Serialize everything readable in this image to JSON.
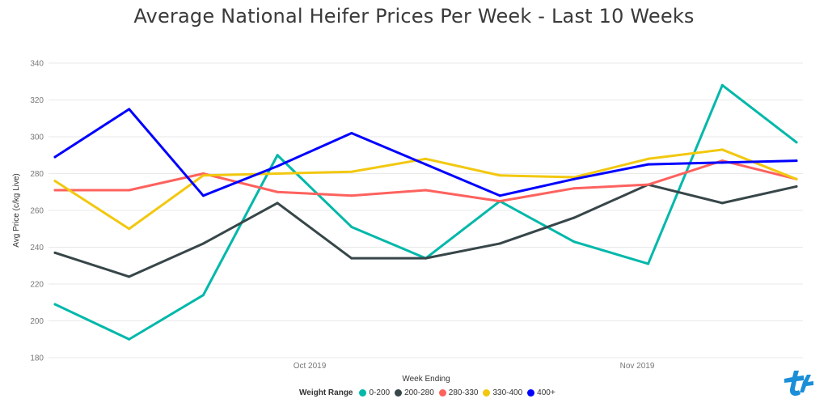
{
  "chart_data": {
    "type": "line",
    "title": "Average National Heifer Prices Per Week - Last 10 Weeks",
    "xlabel": "Week Ending",
    "ylabel": "Avg Price (c/kg Live)",
    "ylim": [
      180,
      340
    ],
    "y_ticks": [
      180,
      200,
      220,
      240,
      260,
      280,
      300,
      320,
      340
    ],
    "x_tick_labels": [
      "Oct 2019",
      "Nov 2019"
    ],
    "grid": "horizontal",
    "legend_title": "Weight Range",
    "legend_position": "bottom-center",
    "series": [
      {
        "name": "0-200",
        "color": "#01B8AA",
        "values": [
          209,
          190,
          214,
          290,
          251,
          234,
          265,
          243,
          231,
          328,
          297
        ]
      },
      {
        "name": "200-280",
        "color": "#374649",
        "values": [
          237,
          224,
          242,
          264,
          234,
          234,
          242,
          256,
          274,
          264,
          273
        ]
      },
      {
        "name": "280-330",
        "color": "#FD625E",
        "values": [
          271,
          271,
          280,
          270,
          268,
          271,
          265,
          272,
          274,
          287,
          277
        ]
      },
      {
        "name": "330-400",
        "color": "#F2C80F",
        "values": [
          276,
          250,
          279,
          280,
          281,
          288,
          279,
          278,
          288,
          293,
          277
        ]
      },
      {
        "name": "400+",
        "color": "#0000FF",
        "values": [
          289,
          315,
          268,
          284,
          302,
          285,
          268,
          277,
          285,
          286,
          287
        ]
      }
    ]
  },
  "logo": {
    "name": "logo-icon",
    "color": "#1a8fd8"
  }
}
